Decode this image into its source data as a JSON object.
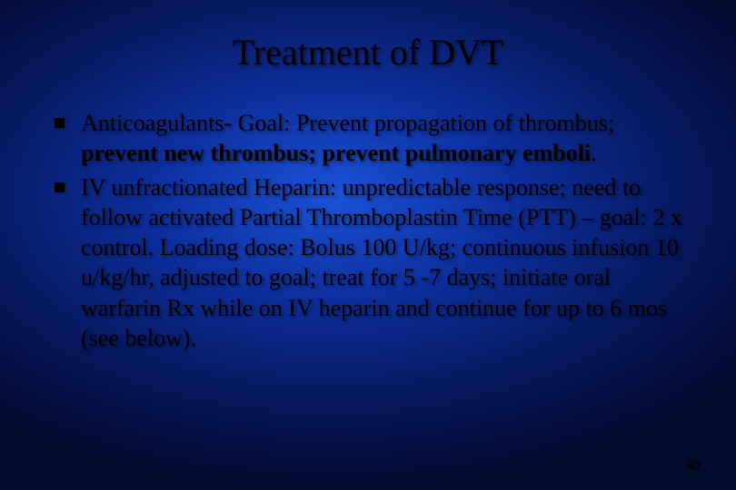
{
  "slide": {
    "title": "Treatment of DVT",
    "bullets": [
      {
        "prefix": "Anticoagulants- Goal: Prevent propagation of thrombus; ",
        "bold": "prevent new thrombus; prevent pulmonary emboli",
        "suffix": "."
      },
      {
        "prefix": "IV unfractionated Heparin: unpredictable response; need to follow activated Partial Thromboplastin Time (PTT) – goal: 2 x control. Loading dose: Bolus 100 U/kg; continuous infusion 10 u/kg/hr, adjusted to goal; treat for 5 -7 days; initiate oral warfarin Rx while on IV heparin and continue for up to 6 mos (see below).",
        "bold": "",
        "suffix": ""
      }
    ],
    "slide_number": "40",
    "styling": {
      "title_fontsize": 40,
      "body_fontsize": 26,
      "bullet_size": 11,
      "text_color": "#000000",
      "bg_gradient_center": "#1a52d8",
      "bg_gradient_edge": "#020a2e",
      "font_family": "Times New Roman"
    }
  }
}
